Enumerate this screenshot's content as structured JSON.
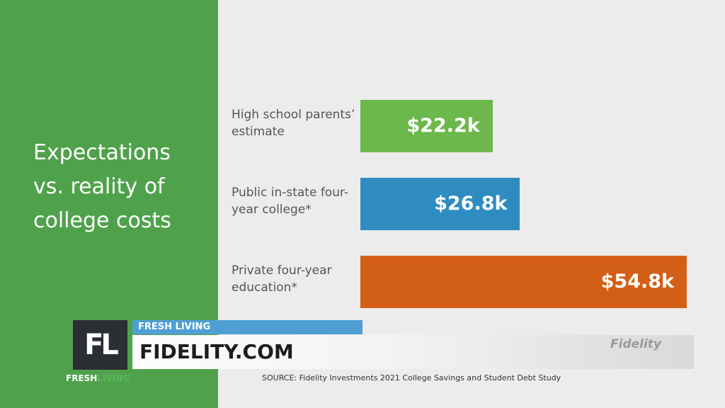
{
  "chart_data": {
    "type": "bar",
    "orientation": "horizontal",
    "title": "Expectations vs. reality of college costs",
    "categories": [
      "High school parents’ estimate",
      "Public in-state four-year college*",
      "Private four-year education*"
    ],
    "values": [
      22.2,
      26.8,
      54.8
    ],
    "value_labels": [
      "$22.2k",
      "$26.8k",
      "$54.8k"
    ],
    "colors": [
      "#6cb84c",
      "#2f8cc1",
      "#d35f16"
    ]
  },
  "overlay": {
    "logo": "FL",
    "logo_caption_1": "FRESH",
    "logo_caption_2": "LIVING",
    "segment": "FRESH LIVING",
    "headline": "FIDELITY.COM",
    "sponsor": "Fidelity",
    "source": "SOURCE: Fidelity Investments 2021 College Savings and Student Debt Study"
  }
}
